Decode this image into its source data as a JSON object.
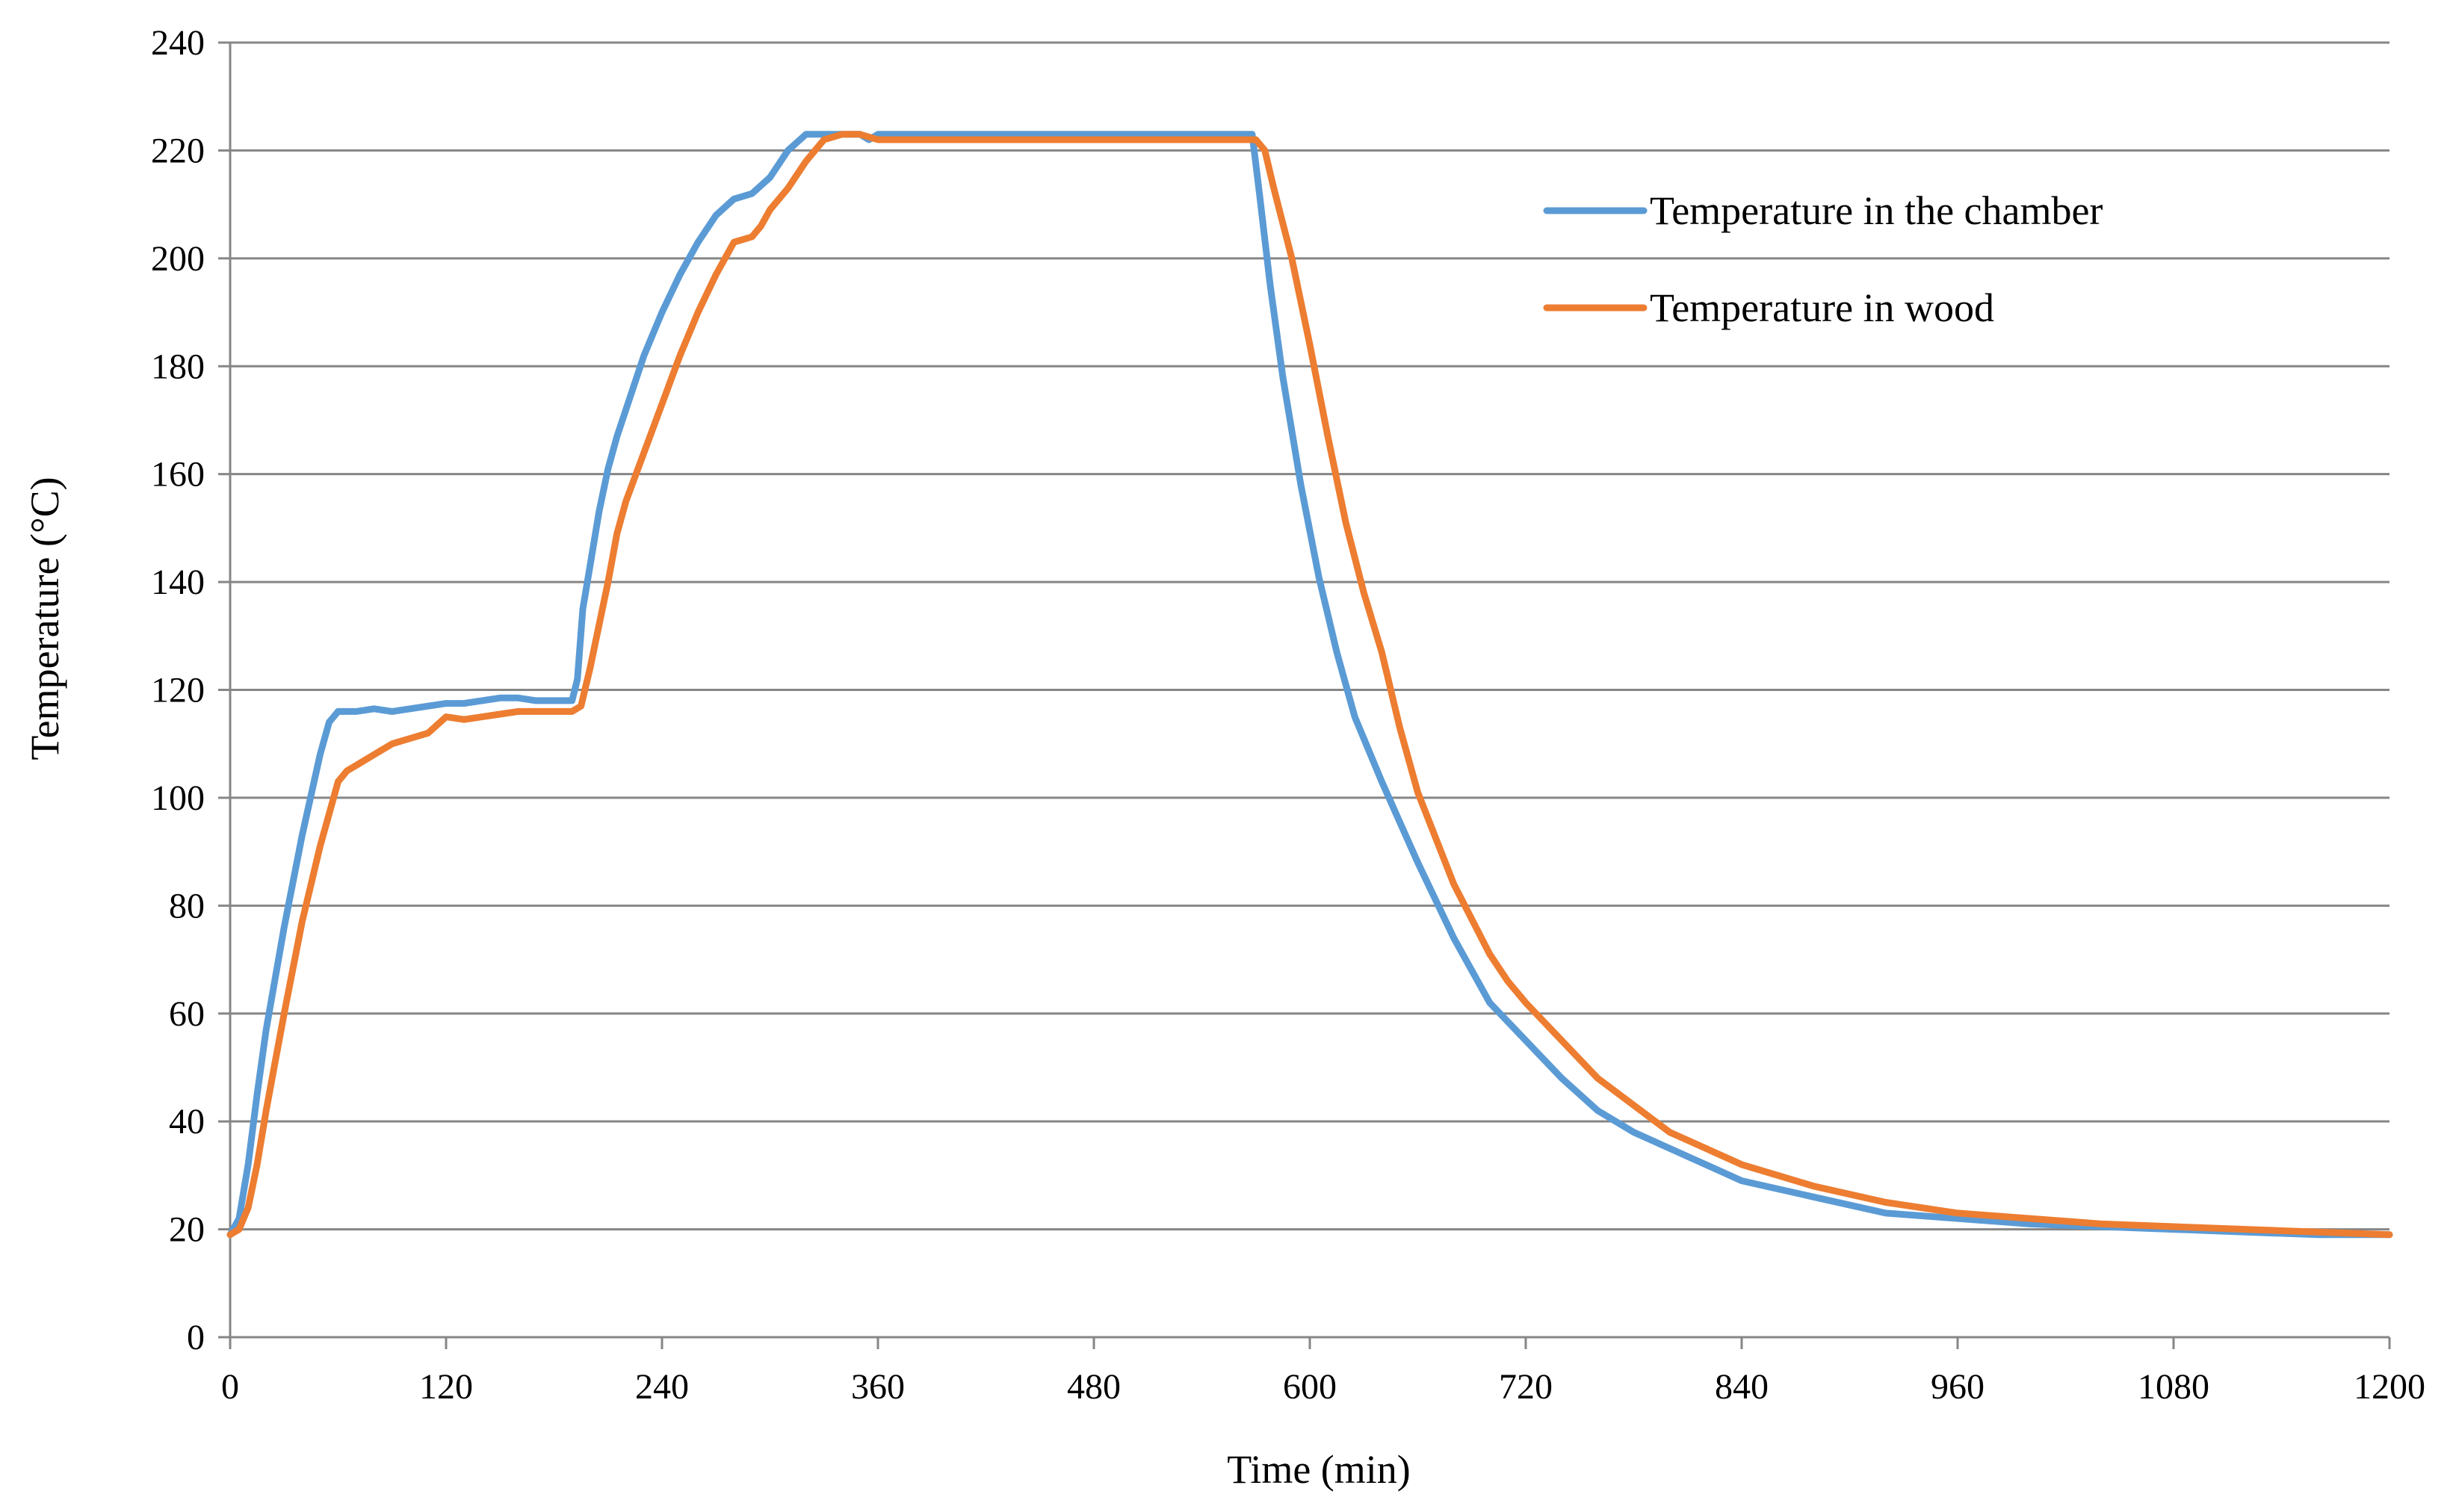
{
  "chart_data": {
    "type": "line",
    "title": "",
    "xlabel": "Time (min)",
    "ylabel": "Temperature (°C)",
    "xlim": [
      0,
      1200
    ],
    "ylim": [
      0,
      240
    ],
    "xticks": [
      0,
      120,
      240,
      360,
      480,
      600,
      720,
      840,
      960,
      1080,
      1200
    ],
    "yticks": [
      0,
      20,
      40,
      60,
      80,
      100,
      120,
      140,
      160,
      180,
      200,
      220,
      240
    ],
    "xtick_labels": [
      "0",
      "120",
      "240",
      "360",
      "480",
      "600",
      "720",
      "840",
      "960",
      "1080",
      "1200"
    ],
    "ytick_labels": [
      "0",
      "20",
      "40",
      "60",
      "80",
      "100",
      "120",
      "140",
      "160",
      "180",
      "200",
      "220",
      "240"
    ],
    "grid": "horizontal",
    "legend_position": "top-right",
    "series": [
      {
        "name": "Temperature in the chamber",
        "color": "#5b9bd5",
        "x": [
          0,
          5,
          10,
          15,
          20,
          30,
          40,
          50,
          55,
          60,
          65,
          70,
          80,
          90,
          100,
          110,
          120,
          130,
          140,
          150,
          160,
          170,
          180,
          190,
          193,
          196,
          200,
          205,
          210,
          215,
          220,
          230,
          240,
          250,
          260,
          270,
          280,
          290,
          300,
          310,
          320,
          325,
          330,
          340,
          345,
          350,
          355,
          360,
          380,
          400,
          420,
          440,
          460,
          480,
          500,
          520,
          540,
          560,
          568,
          572,
          578,
          585,
          595,
          605,
          615,
          625,
          640,
          660,
          680,
          700,
          720,
          740,
          760,
          780,
          800,
          840,
          880,
          920,
          960,
          1000,
          1040,
          1080,
          1120,
          1160,
          1200
        ],
        "values": [
          19,
          22,
          32,
          45,
          57,
          76,
          93,
          108,
          114,
          116,
          116,
          116,
          116.5,
          116,
          116.5,
          117,
          117.5,
          117.5,
          118,
          118.5,
          118.5,
          118,
          118,
          118,
          122,
          135,
          143,
          153,
          161,
          167,
          172,
          182,
          190,
          197,
          203,
          208,
          211,
          212,
          215,
          220,
          223,
          223,
          223,
          223,
          223,
          223,
          222,
          223,
          223,
          223,
          223,
          223,
          223,
          223,
          223,
          223,
          223,
          223,
          223,
          212,
          195,
          178,
          158,
          141,
          127,
          115,
          103,
          88,
          74,
          62,
          55,
          48,
          42,
          38,
          35,
          29,
          26,
          23,
          22,
          21,
          20.5,
          20,
          19.5,
          19,
          19
        ]
      },
      {
        "name": "Temperature in wood",
        "color": "#ed7d31",
        "x": [
          0,
          5,
          10,
          15,
          20,
          25,
          30,
          40,
          50,
          60,
          65,
          70,
          75,
          80,
          90,
          100,
          110,
          120,
          130,
          140,
          150,
          160,
          170,
          180,
          190,
          195,
          200,
          205,
          210,
          215,
          220,
          230,
          240,
          250,
          260,
          270,
          280,
          290,
          295,
          300,
          310,
          320,
          330,
          340,
          345,
          350,
          360,
          380,
          400,
          420,
          440,
          460,
          480,
          500,
          520,
          540,
          560,
          570,
          575,
          580,
          590,
          600,
          610,
          620,
          630,
          640,
          650,
          660,
          680,
          700,
          710,
          720,
          740,
          760,
          780,
          800,
          840,
          880,
          920,
          960,
          1000,
          1040,
          1080,
          1120,
          1160,
          1200
        ],
        "values": [
          19,
          20,
          24,
          32,
          42,
          51,
          60,
          77,
          91,
          103,
          105,
          106,
          107,
          108,
          110,
          111,
          112,
          115,
          114.5,
          115,
          115.5,
          116,
          116,
          116,
          116,
          117,
          124,
          132,
          140,
          149,
          155,
          164,
          173,
          182,
          190,
          197,
          203,
          204,
          206,
          209,
          213,
          218,
          222,
          223,
          223,
          223,
          222,
          222,
          222,
          222,
          222,
          222,
          222,
          222,
          222,
          222,
          222,
          222,
          220,
          213,
          200,
          184,
          167,
          151,
          138,
          127,
          113,
          101,
          84,
          71,
          66,
          62,
          55,
          48,
          43,
          38,
          32,
          28,
          25,
          23,
          22,
          21,
          20.5,
          20,
          19.5,
          19
        ]
      }
    ]
  }
}
